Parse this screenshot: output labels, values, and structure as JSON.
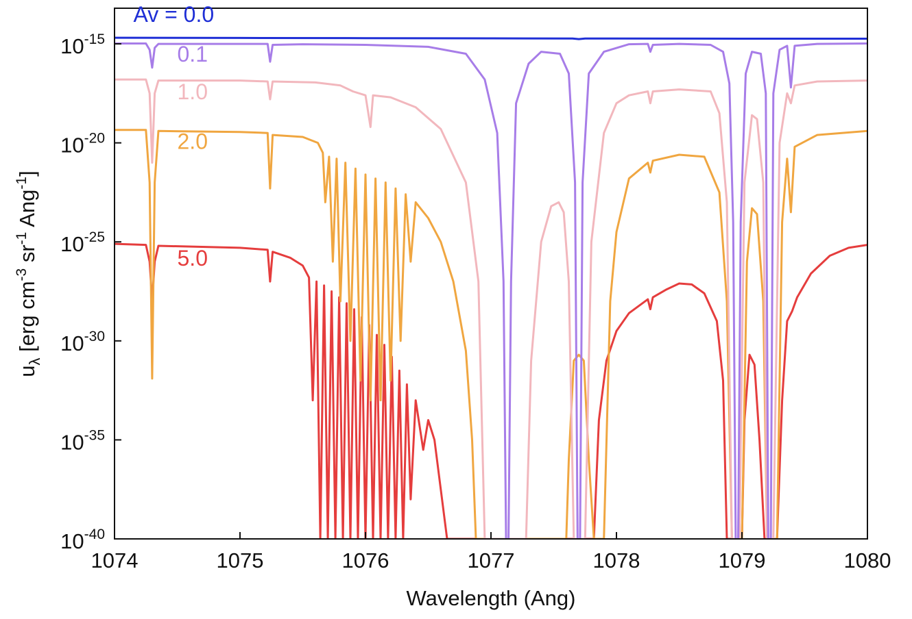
{
  "chart_data": {
    "type": "line",
    "title": "",
    "xlabel": "Wavelength (Ang)",
    "ylabel": {
      "main": "u",
      "sub": "λ",
      "units_prefix": " [erg cm",
      "exp1": "-3",
      "mid": " sr",
      "exp2": "-1",
      "units_tail": " Ang",
      "exp3": "-1",
      "close": "]"
    },
    "xlim": [
      1074,
      1080
    ],
    "ylim_log10": [
      -40,
      -13.2
    ],
    "yscale": "log",
    "grid": false,
    "x_ticks": [
      {
        "value": 1074,
        "label": "1074"
      },
      {
        "value": 1075,
        "label": "1075"
      },
      {
        "value": 1076,
        "label": "1076"
      },
      {
        "value": 1077,
        "label": "1077"
      },
      {
        "value": 1078,
        "label": "1078"
      },
      {
        "value": 1079,
        "label": "1079"
      },
      {
        "value": 1080,
        "label": "1080"
      }
    ],
    "y_ticks": [
      {
        "value": -15,
        "base": "10",
        "exp": "-15"
      },
      {
        "value": -20,
        "base": "10",
        "exp": "-20"
      },
      {
        "value": -25,
        "base": "10",
        "exp": "-25"
      },
      {
        "value": -30,
        "base": "10",
        "exp": "-30"
      },
      {
        "value": -35,
        "base": "10",
        "exp": "-35"
      },
      {
        "value": -40,
        "base": "10",
        "exp": "-40"
      }
    ],
    "series": [
      {
        "label": "Av = 0.0",
        "color": "#1f2fd6",
        "label_at": [
          1074.15,
          -13.9
        ],
        "points": [
          [
            1074,
            -14.69
          ],
          [
            1075,
            -14.7
          ],
          [
            1076,
            -14.71
          ],
          [
            1077,
            -14.72
          ],
          [
            1077.65,
            -14.73
          ],
          [
            1077.7,
            -14.76
          ],
          [
            1077.75,
            -14.73
          ],
          [
            1078,
            -14.73
          ],
          [
            1079,
            -14.74
          ],
          [
            1079.4,
            -14.74
          ],
          [
            1080,
            -14.74
          ]
        ]
      },
      {
        "label": "0.1",
        "color": "#a77de8",
        "label_at": [
          1074.5,
          -15.9
        ],
        "points": [
          [
            1074,
            -14.98
          ],
          [
            1074.25,
            -14.98
          ],
          [
            1074.28,
            -15.3
          ],
          [
            1074.3,
            -16.2
          ],
          [
            1074.32,
            -15.2
          ],
          [
            1074.35,
            -15.0
          ],
          [
            1075,
            -15.0
          ],
          [
            1075.22,
            -15.0
          ],
          [
            1075.24,
            -15.9
          ],
          [
            1075.26,
            -15.05
          ],
          [
            1075.5,
            -15.02
          ],
          [
            1076,
            -15.05
          ],
          [
            1076.5,
            -15.15
          ],
          [
            1076.8,
            -15.5
          ],
          [
            1076.95,
            -16.8
          ],
          [
            1077.05,
            -19.5
          ],
          [
            1077.1,
            -27
          ],
          [
            1077.12,
            -40
          ],
          [
            1077.14,
            -40
          ],
          [
            1077.16,
            -27
          ],
          [
            1077.2,
            -18
          ],
          [
            1077.3,
            -16.0
          ],
          [
            1077.4,
            -15.4
          ],
          [
            1077.55,
            -15.5
          ],
          [
            1077.62,
            -16.5
          ],
          [
            1077.67,
            -22
          ],
          [
            1077.69,
            -40
          ],
          [
            1077.71,
            -40
          ],
          [
            1077.73,
            -22
          ],
          [
            1077.78,
            -16.5
          ],
          [
            1077.9,
            -15.4
          ],
          [
            1078.1,
            -15.02
          ],
          [
            1078.25,
            -15.0
          ],
          [
            1078.27,
            -15.4
          ],
          [
            1078.29,
            -15.05
          ],
          [
            1078.5,
            -15.0
          ],
          [
            1078.75,
            -15.05
          ],
          [
            1078.85,
            -15.4
          ],
          [
            1078.9,
            -17
          ],
          [
            1078.93,
            -24
          ],
          [
            1078.95,
            -40
          ],
          [
            1078.97,
            -40
          ],
          [
            1078.99,
            -24
          ],
          [
            1079.03,
            -16.5
          ],
          [
            1079.08,
            -15.4
          ],
          [
            1079.15,
            -15.5
          ],
          [
            1079.19,
            -17.5
          ],
          [
            1079.21,
            -40
          ],
          [
            1079.23,
            -40
          ],
          [
            1079.25,
            -17.5
          ],
          [
            1079.3,
            -15.3
          ],
          [
            1079.36,
            -15.1
          ],
          [
            1079.39,
            -17.2
          ],
          [
            1079.42,
            -15.1
          ],
          [
            1079.6,
            -15.0
          ],
          [
            1080,
            -14.98
          ]
        ]
      },
      {
        "label": "1.0",
        "color": "#f2b7bd",
        "label_at": [
          1074.5,
          -17.8
        ],
        "points": [
          [
            1074,
            -16.8
          ],
          [
            1074.25,
            -16.8
          ],
          [
            1074.28,
            -17.5
          ],
          [
            1074.3,
            -21
          ],
          [
            1074.32,
            -17.5
          ],
          [
            1074.35,
            -16.85
          ],
          [
            1075,
            -16.85
          ],
          [
            1075.22,
            -16.9
          ],
          [
            1075.24,
            -17.8
          ],
          [
            1075.26,
            -16.9
          ],
          [
            1075.6,
            -16.95
          ],
          [
            1075.8,
            -17.1
          ],
          [
            1075.9,
            -17.4
          ],
          [
            1076.0,
            -17.6
          ],
          [
            1076.04,
            -19.2
          ],
          [
            1076.06,
            -17.6
          ],
          [
            1076.2,
            -17.7
          ],
          [
            1076.4,
            -18.2
          ],
          [
            1076.6,
            -19.3
          ],
          [
            1076.8,
            -22
          ],
          [
            1076.9,
            -27
          ],
          [
            1076.95,
            -40
          ],
          [
            1077.0,
            -40
          ],
          [
            1077.28,
            -40
          ],
          [
            1077.32,
            -31
          ],
          [
            1077.4,
            -25
          ],
          [
            1077.48,
            -23.2
          ],
          [
            1077.54,
            -23.0
          ],
          [
            1077.58,
            -23.5
          ],
          [
            1077.62,
            -27
          ],
          [
            1077.66,
            -40
          ],
          [
            1077.75,
            -40
          ],
          [
            1077.8,
            -25
          ],
          [
            1077.9,
            -19.5
          ],
          [
            1078.0,
            -18.0
          ],
          [
            1078.1,
            -17.6
          ],
          [
            1078.25,
            -17.4
          ],
          [
            1078.27,
            -18.0
          ],
          [
            1078.29,
            -17.4
          ],
          [
            1078.5,
            -17.3
          ],
          [
            1078.75,
            -17.4
          ],
          [
            1078.82,
            -18.5
          ],
          [
            1078.88,
            -23
          ],
          [
            1078.92,
            -40
          ],
          [
            1078.98,
            -40
          ],
          [
            1079.02,
            -22
          ],
          [
            1079.08,
            -18.6
          ],
          [
            1079.12,
            -18.8
          ],
          [
            1079.17,
            -22
          ],
          [
            1079.2,
            -40
          ],
          [
            1079.25,
            -40
          ],
          [
            1079.3,
            -20
          ],
          [
            1079.36,
            -17.5
          ],
          [
            1079.39,
            -18.0
          ],
          [
            1079.42,
            -17.1
          ],
          [
            1079.6,
            -16.9
          ],
          [
            1080,
            -16.85
          ]
        ]
      },
      {
        "label": "2.0",
        "color": "#f0a640",
        "label_at": [
          1074.5,
          -20.3
        ],
        "points": [
          [
            1074,
            -19.35
          ],
          [
            1074.25,
            -19.35
          ],
          [
            1074.28,
            -22
          ],
          [
            1074.3,
            -31.9
          ],
          [
            1074.32,
            -22
          ],
          [
            1074.35,
            -19.4
          ],
          [
            1075,
            -19.45
          ],
          [
            1075.22,
            -19.5
          ],
          [
            1075.24,
            -22.3
          ],
          [
            1075.26,
            -19.6
          ],
          [
            1075.5,
            -19.7
          ],
          [
            1075.62,
            -20.0
          ],
          [
            1075.66,
            -20.5
          ],
          [
            1075.68,
            -23
          ],
          [
            1075.71,
            -20.7
          ],
          [
            1075.74,
            -26
          ],
          [
            1075.77,
            -20.8
          ],
          [
            1075.8,
            -28
          ],
          [
            1075.84,
            -21.0
          ],
          [
            1075.88,
            -30
          ],
          [
            1075.92,
            -21.3
          ],
          [
            1075.96,
            -32
          ],
          [
            1076.0,
            -21.6
          ],
          [
            1076.04,
            -33
          ],
          [
            1076.08,
            -21.8
          ],
          [
            1076.12,
            -33
          ],
          [
            1076.16,
            -22.0
          ],
          [
            1076.2,
            -32
          ],
          [
            1076.24,
            -22.3
          ],
          [
            1076.28,
            -30
          ],
          [
            1076.32,
            -22.6
          ],
          [
            1076.36,
            -26
          ],
          [
            1076.4,
            -23.0
          ],
          [
            1076.5,
            -23.8
          ],
          [
            1076.6,
            -25.0
          ],
          [
            1076.7,
            -27.0
          ],
          [
            1076.8,
            -30.5
          ],
          [
            1076.85,
            -35
          ],
          [
            1076.88,
            -40
          ],
          [
            1077.6,
            -40
          ],
          [
            1077.62,
            -36
          ],
          [
            1077.66,
            -31
          ],
          [
            1077.7,
            -30.7
          ],
          [
            1077.74,
            -31
          ],
          [
            1077.78,
            -36
          ],
          [
            1077.82,
            -40
          ],
          [
            1077.9,
            -40
          ],
          [
            1077.95,
            -28
          ],
          [
            1078.0,
            -24.5
          ],
          [
            1078.1,
            -21.8
          ],
          [
            1078.25,
            -21.0
          ],
          [
            1078.27,
            -21.5
          ],
          [
            1078.29,
            -20.9
          ],
          [
            1078.5,
            -20.6
          ],
          [
            1078.7,
            -20.7
          ],
          [
            1078.82,
            -22.5
          ],
          [
            1078.88,
            -28
          ],
          [
            1078.92,
            -40
          ],
          [
            1079.0,
            -40
          ],
          [
            1079.04,
            -26
          ],
          [
            1079.08,
            -23.3
          ],
          [
            1079.12,
            -23.6
          ],
          [
            1079.17,
            -28
          ],
          [
            1079.2,
            -40
          ],
          [
            1079.28,
            -40
          ],
          [
            1079.32,
            -24
          ],
          [
            1079.36,
            -20.8
          ],
          [
            1079.39,
            -23.5
          ],
          [
            1079.42,
            -20.2
          ],
          [
            1079.6,
            -19.6
          ],
          [
            1080,
            -19.4
          ]
        ]
      },
      {
        "label": "5.0",
        "color": "#e53d3d",
        "label_at": [
          1074.5,
          -26.2
        ],
        "points": [
          [
            1074,
            -25.1
          ],
          [
            1074.25,
            -25.15
          ],
          [
            1074.28,
            -26.0
          ],
          [
            1074.3,
            -28.0
          ],
          [
            1074.32,
            -26.0
          ],
          [
            1074.35,
            -25.2
          ],
          [
            1075,
            -25.3
          ],
          [
            1075.22,
            -25.4
          ],
          [
            1075.24,
            -27.0
          ],
          [
            1075.26,
            -25.5
          ],
          [
            1075.4,
            -25.8
          ],
          [
            1075.5,
            -26.2
          ],
          [
            1075.55,
            -26.8
          ],
          [
            1075.58,
            -33
          ],
          [
            1075.61,
            -27.0
          ],
          [
            1075.64,
            -40
          ],
          [
            1075.67,
            -27.2
          ],
          [
            1075.7,
            -40
          ],
          [
            1075.73,
            -27.5
          ],
          [
            1075.76,
            -40
          ],
          [
            1075.79,
            -27.8
          ],
          [
            1075.82,
            -40
          ],
          [
            1075.85,
            -28.1
          ],
          [
            1075.88,
            -40
          ],
          [
            1075.91,
            -28.4
          ],
          [
            1075.94,
            -40
          ],
          [
            1075.97,
            -28.8
          ],
          [
            1076.0,
            -40
          ],
          [
            1076.03,
            -29.2
          ],
          [
            1076.06,
            -40
          ],
          [
            1076.09,
            -29.7
          ],
          [
            1076.12,
            -40
          ],
          [
            1076.15,
            -30.2
          ],
          [
            1076.18,
            -40
          ],
          [
            1076.21,
            -30.8
          ],
          [
            1076.24,
            -40
          ],
          [
            1076.27,
            -31.5
          ],
          [
            1076.3,
            -40
          ],
          [
            1076.33,
            -32.2
          ],
          [
            1076.36,
            -38
          ],
          [
            1076.4,
            -33.0
          ],
          [
            1076.46,
            -35.5
          ],
          [
            1076.5,
            -34.0
          ],
          [
            1076.55,
            -35
          ],
          [
            1076.6,
            -37.5
          ],
          [
            1076.65,
            -40
          ],
          [
            1077.82,
            -40
          ],
          [
            1077.86,
            -34
          ],
          [
            1077.92,
            -31
          ],
          [
            1078.0,
            -29.5
          ],
          [
            1078.1,
            -28.6
          ],
          [
            1078.25,
            -27.9
          ],
          [
            1078.27,
            -28.4
          ],
          [
            1078.29,
            -27.8
          ],
          [
            1078.4,
            -27.4
          ],
          [
            1078.5,
            -27.1
          ],
          [
            1078.6,
            -27.15
          ],
          [
            1078.7,
            -27.6
          ],
          [
            1078.8,
            -29
          ],
          [
            1078.85,
            -32
          ],
          [
            1078.88,
            -40
          ],
          [
            1079.0,
            -40
          ],
          [
            1079.02,
            -34
          ],
          [
            1079.06,
            -30.7
          ],
          [
            1079.1,
            -31.2
          ],
          [
            1079.14,
            -35
          ],
          [
            1079.18,
            -40
          ],
          [
            1079.28,
            -40
          ],
          [
            1079.32,
            -33
          ],
          [
            1079.36,
            -29
          ],
          [
            1079.4,
            -28.5
          ],
          [
            1079.44,
            -27.8
          ],
          [
            1079.55,
            -26.6
          ],
          [
            1079.7,
            -25.7
          ],
          [
            1079.85,
            -25.3
          ],
          [
            1080,
            -25.15
          ]
        ]
      }
    ]
  }
}
